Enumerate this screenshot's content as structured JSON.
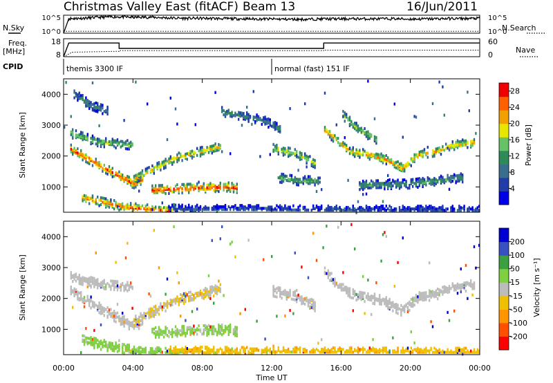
{
  "header": {
    "station": "Christmas Valley East (fitACF)",
    "beam": "Beam 13",
    "date": "16/Jun/2011"
  },
  "strip_labels": {
    "nsky": "N.Sky",
    "nsearch": "N.Search",
    "freq": "Freq.",
    "freq_unit": "[MHz]",
    "nave": "Nave",
    "cpid": "CPID",
    "noise_tick_top": "10^5",
    "noise_tick_bottom": "10^0",
    "freq_tick_top": "18",
    "freq_tick_bottom": "8",
    "nave_tick_top": "60",
    "nave_tick_bottom": "0"
  },
  "chart_data": [
    {
      "type": "line",
      "panel": "noise",
      "series": [
        {
          "name": "N.Sky",
          "style": "solid",
          "x": [
            0,
            0.3,
            1,
            2,
            3,
            4,
            5,
            6,
            7,
            8,
            9,
            10,
            11,
            12,
            13,
            14,
            15,
            16,
            17,
            18,
            19,
            20,
            21,
            22,
            23,
            24
          ],
          "values": [
            1,
            25000,
            30000,
            60000,
            90000,
            60000,
            70000,
            40000,
            30000,
            30000,
            25000,
            22000,
            20000,
            18000,
            16000,
            15000,
            20000,
            20000,
            22000,
            20000,
            22000,
            18000,
            20000,
            25000,
            25000,
            30000
          ]
        },
        {
          "name": "N.Search",
          "style": "dotted",
          "x": [
            0,
            24
          ],
          "values": [
            3,
            3
          ]
        }
      ]
    },
    {
      "type": "line",
      "panel": "frequency",
      "series": [
        {
          "name": "Freq.",
          "style": "solid",
          "x": [
            0,
            0.3,
            3.2,
            3.2,
            15,
            15,
            24
          ],
          "values": [
            8,
            15.6,
            15.6,
            12.6,
            12.6,
            15.6,
            15.6
          ]
        },
        {
          "name": "Nave",
          "style": "dotted",
          "x": [
            0,
            0.5,
            3.2,
            3.2,
            15,
            15,
            24
          ],
          "values": [
            0,
            15,
            18,
            20,
            20,
            22,
            22
          ]
        }
      ]
    },
    {
      "type": "table",
      "panel": "cpid",
      "segments": [
        {
          "start": 0,
          "end": 12,
          "label": "themis 3300 IF"
        },
        {
          "start": 12,
          "end": 24,
          "label": "normal (fast) 151 IF"
        }
      ]
    },
    {
      "type": "heatmap",
      "panel": "power",
      "ylabel": "Slant Range [km]",
      "ylim": [
        180,
        4500
      ],
      "xlim": [
        0,
        24
      ],
      "colorbar": {
        "label": "Power [dB]",
        "ticks": [
          "4",
          "8",
          "12",
          "16",
          "20",
          "24",
          "28"
        ],
        "range": [
          0,
          30
        ],
        "colors": [
          "#0000e6",
          "#1f3ca8",
          "#3a6e8e",
          "#2e8b57",
          "#66c266",
          "#e6e600",
          "#f0a000",
          "#ff6000",
          "#f00000"
        ]
      },
      "features": [
        {
          "t": [
            0.3,
            2.5,
            4.0,
            4.5
          ],
          "r": [
            2300,
            1600,
            1150,
            1300
          ],
          "value": 26
        },
        {
          "t": [
            4.0,
            6.5,
            9.0
          ],
          "r": [
            1300,
            2000,
            2350
          ],
          "value": 20
        },
        {
          "t": [
            5.0,
            7.0,
            9.5,
            10.0
          ],
          "r": [
            950,
            1000,
            1050,
            1000
          ],
          "value": 28
        },
        {
          "t": [
            1.0,
            3.5,
            5.5,
            7.0
          ],
          "r": [
            700,
            400,
            300,
            250
          ],
          "value": 25
        },
        {
          "t": [
            0.3,
            2.0,
            4.0
          ],
          "r": [
            2800,
            2500,
            2400
          ],
          "value": 16
        },
        {
          "t": [
            0.5,
            1.5,
            2.5
          ],
          "r": [
            4100,
            3700,
            3500
          ],
          "value": 10
        },
        {
          "t": [
            9.0,
            11.5,
            12.5
          ],
          "r": [
            3500,
            3200,
            2900
          ],
          "value": 10
        },
        {
          "t": [
            12.0,
            13.5,
            14.5
          ],
          "r": [
            2300,
            2100,
            1800
          ],
          "value": 18
        },
        {
          "t": [
            12.3,
            13.5,
            14.8
          ],
          "r": [
            1350,
            1250,
            1250
          ],
          "value": 14
        },
        {
          "t": [
            15.0,
            16.5,
            17.5,
            18.5,
            19.5,
            20.5,
            21.5,
            22.5,
            23.7
          ],
          "r": [
            2900,
            2200,
            2100,
            1950,
            1650,
            2100,
            2200,
            2400,
            2500
          ],
          "value": 22
        },
        {
          "t": [
            16.0,
            17.0,
            18.0
          ],
          "r": [
            3400,
            2900,
            2600
          ],
          "value": 16
        },
        {
          "t": [
            17.0,
            20.0,
            23.0
          ],
          "r": [
            1100,
            1150,
            1350
          ],
          "value": 12
        },
        {
          "t": [
            6.0,
            15.0,
            24.0
          ],
          "r": [
            330,
            300,
            290
          ],
          "value": 6
        }
      ]
    },
    {
      "type": "heatmap",
      "panel": "velocity",
      "ylabel": "Slant Range [km]",
      "xlabel": "Time UT",
      "xticks": [
        "00:00",
        "04:00",
        "08:00",
        "12:00",
        "16:00",
        "20:00",
        "00:00"
      ],
      "ylim": [
        180,
        4500
      ],
      "xlim": [
        0,
        24
      ],
      "colorbar": {
        "label": "Velocity [m s⁻¹]",
        "ticks": [
          "200",
          "100",
          "50",
          "15",
          "-15",
          "-50",
          "-100",
          "-200"
        ],
        "range": [
          -250,
          250
        ],
        "colors": [
          "#ff0000",
          "#ff5000",
          "#ff9500",
          "#f0c000",
          "#bcbcbc",
          "#7fd040",
          "#3aa040",
          "#3a50c0",
          "#0000d0"
        ]
      },
      "features": [
        {
          "t": [
            0.3,
            2.5,
            4.0,
            4.5
          ],
          "r": [
            2300,
            1600,
            1150,
            1300
          ],
          "value": 0
        },
        {
          "t": [
            4.0,
            6.5,
            9.0
          ],
          "r": [
            1300,
            2000,
            2350
          ],
          "value": -25
        },
        {
          "t": [
            5.0,
            7.0,
            9.5,
            10.0
          ],
          "r": [
            950,
            1000,
            1050,
            1000
          ],
          "value": 40
        },
        {
          "t": [
            1.0,
            3.5,
            5.5,
            7.0
          ],
          "r": [
            700,
            400,
            300,
            250
          ],
          "value": 45
        },
        {
          "t": [
            0.3,
            2.0,
            4.0
          ],
          "r": [
            2800,
            2500,
            2400
          ],
          "value": 0
        },
        {
          "t": [
            12.0,
            13.5,
            14.5
          ],
          "r": [
            2300,
            2100,
            1800
          ],
          "value": 0
        },
        {
          "t": [
            15.0,
            16.5,
            17.5,
            18.5,
            19.5,
            20.5,
            21.5,
            22.5,
            23.7
          ],
          "r": [
            2900,
            2200,
            2100,
            1950,
            1650,
            2100,
            2200,
            2400,
            2500
          ],
          "value": 0
        },
        {
          "t": [
            6.0,
            15.0,
            24.0
          ],
          "r": [
            330,
            300,
            290
          ],
          "value": -70
        }
      ]
    }
  ],
  "axes": {
    "range_ticks": [
      "1000",
      "2000",
      "3000",
      "4000"
    ],
    "range_values": [
      1000,
      2000,
      3000,
      4000
    ],
    "time_ticks": [
      "00:00",
      "04:00",
      "08:00",
      "12:00",
      "16:00",
      "20:00",
      "00:00"
    ],
    "time_values": [
      0,
      4,
      8,
      12,
      16,
      20,
      24
    ],
    "ylabel": "Slant Range [km]",
    "xlabel": "Time UT",
    "power_label": "Power [dB]",
    "velocity_label": "Velocity [m s⁻¹]"
  }
}
